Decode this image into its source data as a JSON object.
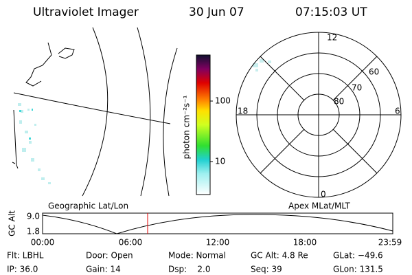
{
  "header": {
    "title": "Ultraviolet Imager",
    "date": "30 Jun 07",
    "time": "07:15:03 UT"
  },
  "colorbar": {
    "label": "photon cm⁻²s⁻¹",
    "ticks": [
      "100",
      "10"
    ]
  },
  "polar": {
    "mlt_labels": [
      "12",
      "18",
      "6",
      "0"
    ],
    "lat_labels": [
      "60",
      "70",
      "80"
    ]
  },
  "timeline": {
    "left_label": "Geographic Lat/Lon",
    "right_label": "Apex MLat/MLT",
    "y_label": "GC Alt",
    "y_ticks": [
      "9.0",
      "1.8"
    ],
    "x_ticks": [
      "00:00",
      "06:00",
      "12:00",
      "18:00",
      "23:59"
    ]
  },
  "info": [
    [
      "Flt: LBHL",
      "Door: Open",
      "Mode: Normal",
      "GC Alt: 4.8 Re",
      "GLat: −49.6"
    ],
    [
      "IP: 36.0",
      "Gain: 14",
      "Dsp:    2.0",
      "Seq: 39",
      "GLon: 131.5"
    ]
  ]
}
